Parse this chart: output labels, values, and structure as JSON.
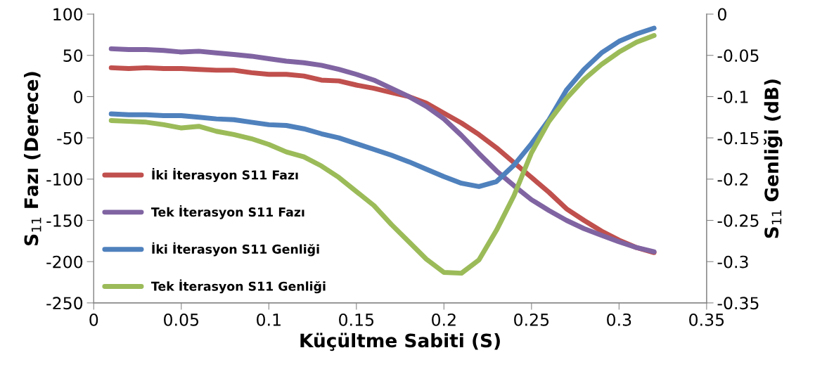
{
  "chart_data": {
    "type": "line",
    "xlabel": "Küçültme Sabiti (S)",
    "ylabel": "S$_{11}$ Fazı (Derece)",
    "y2label": "S$_{11}$ Genliği (dB)",
    "x": [
      0.01,
      0.02,
      0.03,
      0.04,
      0.05,
      0.06,
      0.07,
      0.08,
      0.09,
      0.1,
      0.11,
      0.12,
      0.13,
      0.14,
      0.15,
      0.16,
      0.17,
      0.18,
      0.19,
      0.2,
      0.21,
      0.22,
      0.23,
      0.24,
      0.25,
      0.26,
      0.27,
      0.28,
      0.29,
      0.3,
      0.31,
      0.32
    ],
    "series": [
      {
        "name": "İki İterasyon S11 Fazı",
        "color": "#c0504d",
        "values": [
          35,
          34,
          35,
          34,
          34,
          33,
          32,
          32,
          29,
          27,
          27,
          25,
          20,
          19,
          14,
          10,
          5,
          0,
          -8,
          -20,
          -32,
          -46,
          -62,
          -80,
          -98,
          -116,
          -136,
          -150,
          -163,
          -174,
          -183,
          -189
        ]
      },
      {
        "name": "Tek İterasyon S11 Fazı",
        "color": "#8064a2",
        "values": [
          58,
          57,
          57,
          56,
          54,
          55,
          53,
          51,
          49,
          46,
          43,
          41,
          38,
          33,
          27,
          20,
          10,
          0,
          -12,
          -27,
          -47,
          -69,
          -90,
          -108,
          -125,
          -138,
          -150,
          -160,
          -168,
          -176,
          -183,
          -188
        ]
      },
      {
        "name": "İki İterasyon S11 Genliği",
        "color": "#4f81bd",
        "axis": "y2",
        "values": [
          -0.121,
          -0.122,
          -0.122,
          -0.123,
          -0.123,
          -0.125,
          -0.127,
          -0.128,
          -0.131,
          -0.134,
          -0.135,
          -0.139,
          -0.145,
          -0.15,
          -0.157,
          -0.164,
          -0.171,
          -0.179,
          -0.188,
          -0.197,
          -0.205,
          -0.209,
          -0.203,
          -0.183,
          -0.157,
          -0.128,
          -0.092,
          -0.067,
          -0.047,
          -0.033,
          -0.024,
          -0.017
        ]
      },
      {
        "name": "Tek İterasyon S11 Genliği",
        "color": "#9bbb59",
        "axis": "y2",
        "values": [
          -0.129,
          -0.13,
          -0.131,
          -0.134,
          -0.138,
          -0.136,
          -0.142,
          -0.146,
          -0.151,
          -0.158,
          -0.167,
          -0.173,
          -0.184,
          -0.198,
          -0.215,
          -0.232,
          -0.255,
          -0.276,
          -0.297,
          -0.313,
          -0.314,
          -0.298,
          -0.262,
          -0.22,
          -0.168,
          -0.13,
          -0.102,
          -0.079,
          -0.061,
          -0.046,
          -0.034,
          -0.026
        ]
      }
    ],
    "xlim": [
      0,
      0.35
    ],
    "xticks": [
      0,
      0.05,
      0.1,
      0.15,
      0.2,
      0.25,
      0.3,
      0.35
    ],
    "ylim": [
      -250,
      100
    ],
    "yticks": [
      -250,
      -200,
      -150,
      -100,
      -50,
      0,
      50,
      100
    ],
    "y2lim": [
      -0.35,
      0
    ],
    "y2ticks": [
      -0.35,
      -0.3,
      -0.25,
      -0.2,
      -0.15,
      -0.1,
      -0.05,
      0
    ],
    "grid": false,
    "legend": "center left",
    "marker": "none",
    "line_style": "solid"
  }
}
